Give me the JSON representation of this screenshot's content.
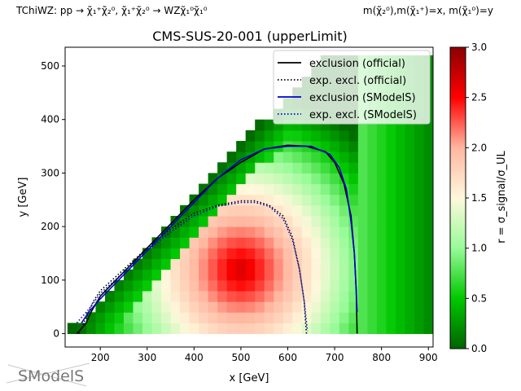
{
  "header": {
    "left": "TChiWZ: pp → χ̃₁⁺χ̃₂⁰, χ̃₁⁺χ̃₂⁰ → WZχ̃₁⁰χ̃₁⁰",
    "right": "m(χ̃₂⁰),m(χ̃₁⁺)=x, m(χ̃₁⁰)=y"
  },
  "logo": {
    "text": "SModelS"
  },
  "chart_data": {
    "type": "heatmap",
    "title": "CMS-SUS-20-001 (upperLimit)",
    "xlabel": "x [GeV]",
    "ylabel": "y [GeV]",
    "xlim": [
      125,
      910
    ],
    "ylim": [
      -25,
      535
    ],
    "xticks": [
      200,
      300,
      400,
      500,
      600,
      700,
      800,
      900
    ],
    "yticks": [
      0,
      100,
      200,
      300,
      400,
      500
    ],
    "cell_width": 20,
    "cell_height": 20,
    "grid": false,
    "legend_position": "upper right",
    "colorbar": {
      "label": "r = σ_signal/σ_UL",
      "min": 0.0,
      "max": 3.0,
      "ticks": [
        0.0,
        0.5,
        1.0,
        1.5,
        2.0,
        2.5,
        3.0
      ],
      "colors": [
        "#006400",
        "#00c800",
        "#98fb98",
        "#fff8dc",
        "#ffb6a0",
        "#ff0000",
        "#8b0000"
      ]
    },
    "series": [
      {
        "name": "exclusion (official)",
        "color": "#000000",
        "style": "solid",
        "x": [
          150,
          160,
          170,
          180,
          200,
          250,
          300,
          350,
          400,
          450,
          500,
          550,
          600,
          640,
          680,
          700,
          720,
          735,
          742,
          746,
          748
        ],
        "y": [
          0,
          10,
          20,
          40,
          70,
          115,
          160,
          205,
          250,
          290,
          320,
          345,
          352,
          350,
          340,
          320,
          280,
          220,
          150,
          80,
          0
        ]
      },
      {
        "name": "exp. excl. (official)",
        "color": "#000000",
        "style": "dotted",
        "x": [
          155,
          170,
          185,
          200,
          250,
          300,
          350,
          400,
          450,
          500,
          530,
          560,
          590,
          610,
          625,
          635,
          638,
          640
        ],
        "y": [
          0,
          30,
          60,
          80,
          120,
          160,
          195,
          225,
          240,
          248,
          248,
          240,
          220,
          180,
          120,
          60,
          20,
          0
        ]
      },
      {
        "name": "exclusion (SModelS)",
        "color": "#0000cd",
        "style": "solid",
        "x": [
          160,
          175,
          200,
          250,
          300,
          350,
          400,
          450,
          500,
          550,
          600,
          650,
          690,
          710,
          725,
          735,
          742,
          746,
          748
        ],
        "y": [
          20,
          40,
          65,
          110,
          155,
          200,
          245,
          290,
          325,
          345,
          350,
          350,
          335,
          310,
          270,
          210,
          150,
          80,
          40
        ]
      },
      {
        "name": "exp. excl. (SModelS)",
        "color": "#0000cd",
        "style": "dotted",
        "x": [
          150,
          175,
          200,
          250,
          300,
          350,
          400,
          450,
          500,
          530,
          560,
          590,
          610,
          625,
          635,
          640,
          642
        ],
        "y": [
          20,
          45,
          75,
          115,
          155,
          190,
          220,
          238,
          245,
          245,
          238,
          215,
          175,
          120,
          60,
          20,
          5
        ]
      }
    ]
  }
}
